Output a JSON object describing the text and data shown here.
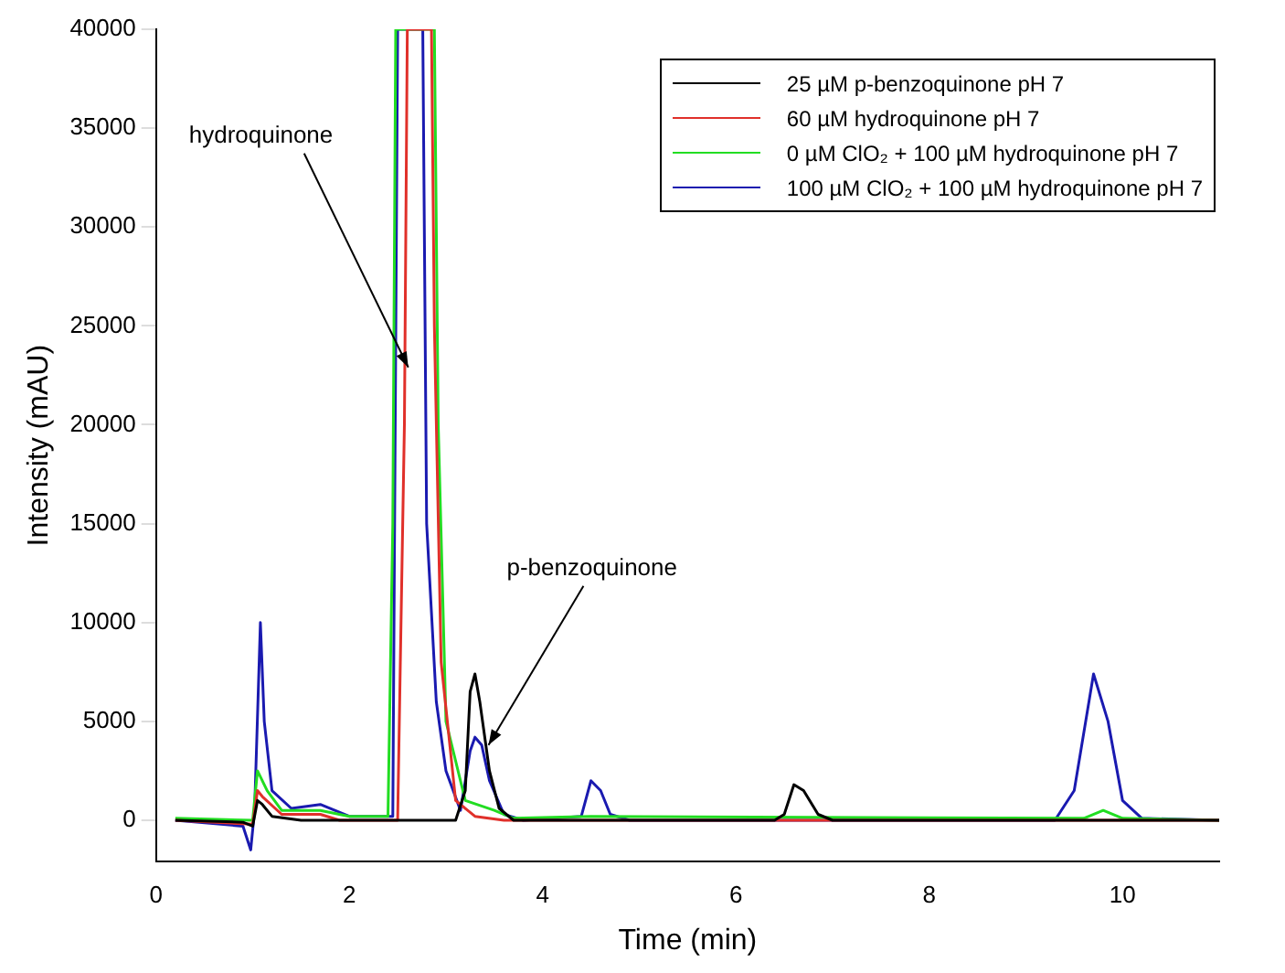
{
  "chart_data": {
    "type": "line",
    "xlabel": "Time (min)",
    "ylabel": "Intensity (mAU)",
    "xlim": [
      0,
      11
    ],
    "xticks": [
      0,
      2,
      4,
      6,
      8,
      10
    ],
    "ylim": [
      -2100,
      40000
    ],
    "yticks": [
      0,
      5000,
      10000,
      15000,
      20000,
      25000,
      30000,
      35000,
      40000
    ],
    "grid": false,
    "legend": "top right",
    "marker": "none",
    "line_style": "solid",
    "annotations": [
      {
        "text": "hydroquinone",
        "x": 2.61,
        "y": 22900
      },
      {
        "text": "p-benzoquinone",
        "x": 3.44,
        "y": 3800
      }
    ],
    "series": [
      {
        "name": "25 µM  p-benzoquinone pH 7",
        "color": "#000000",
        "x": [
          0.2,
          0.9,
          1.0,
          1.05,
          1.1,
          1.2,
          1.5,
          3.1,
          3.2,
          3.25,
          3.3,
          3.35,
          3.45,
          3.55,
          3.7,
          6.4,
          6.5,
          6.6,
          6.7,
          6.85,
          7.0,
          11
        ],
        "values": [
          0,
          -100,
          -300,
          1000,
          800,
          200,
          0,
          0,
          1500,
          6500,
          7400,
          6000,
          2500,
          600,
          0,
          0,
          300,
          1800,
          1500,
          300,
          0,
          0
        ]
      },
      {
        "name": "60 µM  hydroquinone pH 7",
        "color": "#e0302a",
        "x": [
          0.2,
          1.0,
          1.05,
          1.1,
          1.3,
          1.7,
          1.9,
          2.5,
          2.57,
          2.6,
          2.85,
          2.88,
          2.95,
          3.1,
          3.3,
          3.6,
          11
        ],
        "values": [
          0,
          -200,
          1500,
          1200,
          300,
          300,
          0,
          0,
          20000,
          40000,
          40000,
          25000,
          8000,
          1000,
          200,
          0,
          0
        ]
      },
      {
        "name": "0 µM  ClO₂ + 100 µM hydroquinone pH 7",
        "color": "#22dd22",
        "x": [
          0.2,
          1.0,
          1.05,
          1.15,
          1.3,
          1.7,
          2.0,
          2.4,
          2.45,
          2.48,
          2.88,
          2.92,
          3.0,
          3.2,
          3.5,
          3.7,
          4.5,
          9.6,
          9.8,
          10,
          11
        ],
        "values": [
          100,
          0,
          2500,
          1500,
          500,
          500,
          200,
          200,
          15000,
          40000,
          40000,
          20000,
          5000,
          1000,
          500,
          100,
          200,
          100,
          500,
          100,
          0
        ]
      },
      {
        "name": "100 µM  ClO₂ + 100 µM hydroquinone pH 7",
        "color": "#1a1ab0",
        "x": [
          0.2,
          0.9,
          0.98,
          1.02,
          1.08,
          1.12,
          1.2,
          1.4,
          1.7,
          2.0,
          2.45,
          2.5,
          2.76,
          2.8,
          2.9,
          3.0,
          3.15,
          3.25,
          3.3,
          3.37,
          3.45,
          3.6,
          3.8,
          4.4,
          4.5,
          4.6,
          4.7,
          4.9,
          9.3,
          9.5,
          9.7,
          9.85,
          10.0,
          10.2,
          11
        ],
        "values": [
          0,
          -300,
          -1500,
          500,
          10000,
          5000,
          1500,
          600,
          800,
          200,
          200,
          40000,
          40000,
          15000,
          6000,
          2500,
          500,
          3500,
          4200,
          3800,
          2000,
          300,
          0,
          200,
          2000,
          1500,
          300,
          0,
          0,
          1500,
          7400,
          5000,
          1000,
          100,
          0
        ]
      }
    ]
  }
}
